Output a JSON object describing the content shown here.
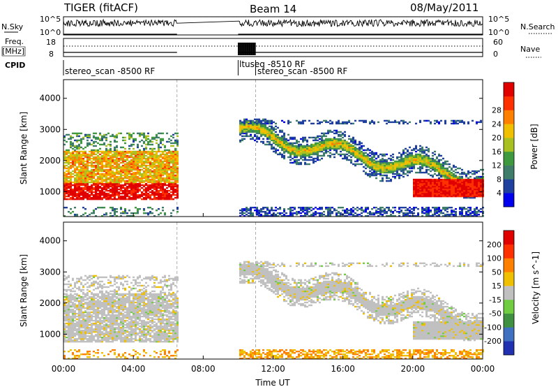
{
  "header": {
    "title": "TIGER (fitACF)",
    "beam": "Beam 14",
    "date": "08/May/2011"
  },
  "top_panels": {
    "nsky_label": "N.Sky",
    "nsearch_label": "N.Search",
    "nsky_ticks": [
      "10^5",
      "10^0"
    ],
    "freq_label_line1": "Freq.",
    "freq_label_line2": "[MHz]",
    "freq_ticks": [
      "18",
      "8"
    ],
    "nave_ticks": [
      "60",
      "0"
    ],
    "nave_label": "Nave",
    "cpid_label": "CPID",
    "cpid_segments": [
      {
        "label": "stereo_scan -8500 RF",
        "start_hour": 0.0
      },
      {
        "label": "ltuseq -8510 RF",
        "start_hour": 10.0
      },
      {
        "label": "stereo_scan -8500 RF",
        "start_hour": 11.0
      }
    ]
  },
  "x_axis": {
    "label": "Time UT",
    "ticks": [
      "00:00",
      "04:00",
      "08:00",
      "12:00",
      "16:00",
      "20:00",
      "00:00"
    ]
  },
  "chart_data": [
    {
      "type": "heatmap",
      "name": "power",
      "ylabel": "Slant Range [km]",
      "xlim": [
        0,
        24
      ],
      "ylim": [
        200,
        4600
      ],
      "yticks": [
        "1000",
        "2000",
        "3000",
        "4000"
      ],
      "colorbar_label": "Power [dB]",
      "colorbar_ticks": [
        "4",
        "8",
        "12",
        "16",
        "20",
        "24",
        "28"
      ],
      "colorbar_colors": [
        "#0000ee",
        "#2040a0",
        "#3d7d6a",
        "#3f9a3f",
        "#a8c020",
        "#f0c000",
        "#ff8000",
        "#ff3000",
        "#e00000"
      ],
      "data_gap_hours": [
        6.5,
        10.0
      ],
      "features": [
        {
          "name": "ground scatter",
          "start_hour": 0.0,
          "end_hour": 6.5,
          "range_km": [
            700,
            2300
          ],
          "level": "strong"
        },
        {
          "name": "ionospheric echoes",
          "start_hour": 10.0,
          "end_hour": 24.0,
          "range_km": [
            1200,
            3300
          ],
          "level": "moderate"
        },
        {
          "name": "near-range scatter",
          "start_hour": 10.0,
          "end_hour": 24.0,
          "range_km": [
            200,
            500
          ],
          "level": "weak"
        }
      ]
    },
    {
      "type": "heatmap",
      "name": "velocity",
      "ylabel": "Slant Range [km]",
      "xlim": [
        0,
        24
      ],
      "ylim": [
        200,
        4600
      ],
      "yticks": [
        "1000",
        "2000",
        "3000",
        "4000"
      ],
      "colorbar_label": "Velocity [m s^-1]",
      "colorbar_ticks": [
        "200",
        "100",
        "50",
        "15",
        "-15",
        "-50",
        "-100",
        "-200"
      ],
      "colorbar_colors": [
        "#2030b0",
        "#4070c0",
        "#3f9040",
        "#70cc40",
        "#c0c0c0",
        "#f0c000",
        "#ff8000",
        "#ff3000",
        "#e00000"
      ],
      "data_gap_hours": [
        6.5,
        10.0
      ]
    }
  ]
}
